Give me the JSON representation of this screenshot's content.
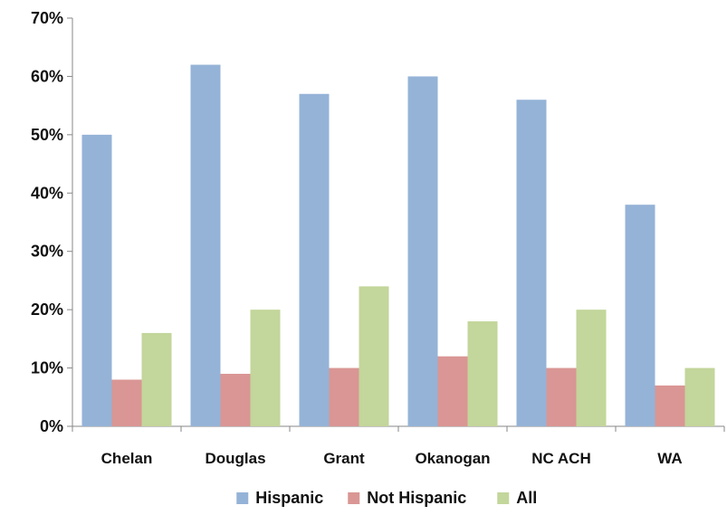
{
  "chart_data": {
    "type": "bar",
    "categories": [
      "Chelan",
      "Douglas",
      "Grant",
      "Okanogan",
      "NC ACH",
      "WA"
    ],
    "series": [
      {
        "name": "Hispanic",
        "values": [
          50,
          62,
          57,
          60,
          56,
          38
        ],
        "color": "#95b3d7"
      },
      {
        "name": "Not Hispanic",
        "values": [
          8,
          9,
          10,
          12,
          10,
          7
        ],
        "color": "#d99694"
      },
      {
        "name": "All",
        "values": [
          16,
          20,
          24,
          18,
          20,
          10
        ],
        "color": "#c3d69b"
      }
    ],
    "ylim": [
      0,
      70
    ],
    "y_ticks": [
      0,
      10,
      20,
      30,
      40,
      50,
      60,
      70
    ],
    "y_tick_labels": [
      "0%",
      "10%",
      "20%",
      "30%",
      "40%",
      "50%",
      "60%",
      "70%"
    ],
    "y_unit": "%",
    "grid": false,
    "legend_position": "bottom"
  }
}
